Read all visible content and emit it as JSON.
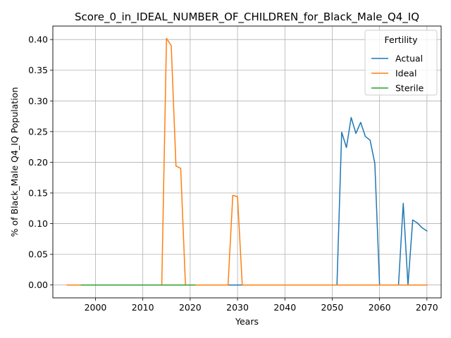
{
  "chart_data": {
    "type": "line",
    "title": "Score_0_in_IDEAL_NUMBER_OF_CHILDREN_for_Black_Male_Q4_IQ",
    "xlabel": "Years",
    "ylabel": "% of Black_Male Q4_IQ Population",
    "xlim": [
      1991,
      2073
    ],
    "ylim": [
      -0.021,
      0.422
    ],
    "xticks": [
      2000,
      2010,
      2020,
      2030,
      2040,
      2050,
      2060,
      2070
    ],
    "yticks": [
      0.0,
      0.05,
      0.1,
      0.15,
      0.2,
      0.25,
      0.3,
      0.35,
      0.4
    ],
    "xtick_labels": [
      "2000",
      "2010",
      "2020",
      "2030",
      "2040",
      "2050",
      "2060",
      "2070"
    ],
    "ytick_labels": [
      "0.00",
      "0.05",
      "0.10",
      "0.15",
      "0.20",
      "0.25",
      "0.30",
      "0.35",
      "0.40"
    ],
    "grid": true,
    "legend": {
      "title": "Fertility",
      "placement": "upper-right"
    },
    "series": [
      {
        "name": "Actual",
        "color": "#1f77b4",
        "x": [
          1997,
          2051,
          2052,
          2053,
          2054,
          2055,
          2056,
          2057,
          2058,
          2059,
          2060,
          2064,
          2065,
          2066,
          2067,
          2068,
          2069,
          2070
        ],
        "y": [
          0.0,
          0.0,
          0.249,
          0.224,
          0.273,
          0.247,
          0.265,
          0.242,
          0.236,
          0.198,
          0.0,
          0.0,
          0.133,
          0.0,
          0.106,
          0.101,
          0.093,
          0.088
        ]
      },
      {
        "name": "Ideal",
        "color": "#ff7f0e",
        "x": [
          1994,
          2014,
          2015,
          2016,
          2017,
          2018,
          2019,
          2028,
          2029,
          2030,
          2031,
          2070
        ],
        "y": [
          0.0,
          0.0,
          0.402,
          0.39,
          0.194,
          0.19,
          0.0,
          0.0,
          0.146,
          0.144,
          0.0,
          0.0
        ]
      },
      {
        "name": "Sterile",
        "color": "#2ca02c",
        "x": [
          1997,
          2021
        ],
        "y": [
          0.0,
          0.0
        ]
      }
    ]
  }
}
